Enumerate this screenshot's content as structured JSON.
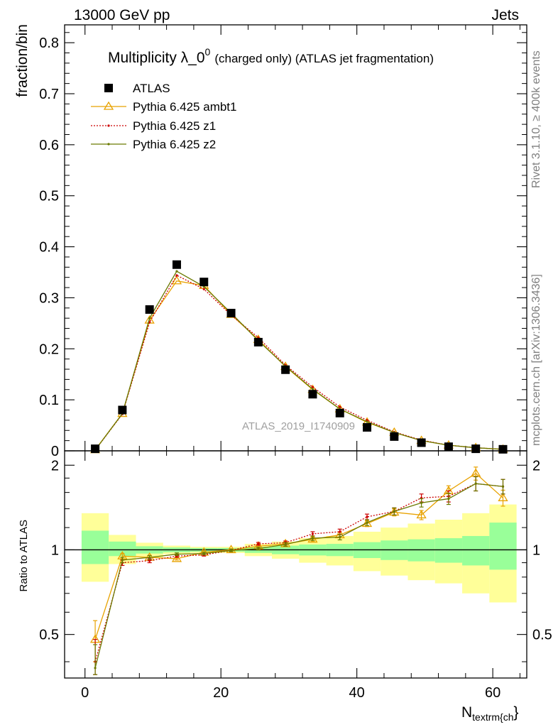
{
  "header": {
    "left": "13000 GeV pp",
    "right": "Jets"
  },
  "side": {
    "rivet": "Rivet 3.1.10, ≥ 400k events",
    "mcplots": "mcplots.cern.ch [arXiv:1306.3436]"
  },
  "colors": {
    "data": "#000000",
    "ambt1": "#e8a200",
    "z1": "#cc0000",
    "z2": "#6b7a00",
    "band_inner": "#99ff99",
    "band_outer": "#ffff99"
  },
  "chart_data": [
    {
      "type": "scatter",
      "title": "Multiplicity λ_0⁰ (charged only) (ATLAS jet fragmentation)",
      "title_main": "Multiplicity λ_0",
      "title_sup": "0",
      "title_rest": "(charged only) (ATLAS jet fragmentation)",
      "ylabel": "fraction/bin",
      "xlabel": "N",
      "xlabel_sub": "textrm{ch",
      "xlabel_close": "}",
      "watermark": "ATLAS_2019_I1740909",
      "xlim": [
        -3,
        65
      ],
      "ylim": [
        0,
        0.835
      ],
      "yticks": [
        0,
        0.1,
        0.2,
        0.3,
        0.4,
        0.5,
        0.6,
        0.7,
        0.8
      ],
      "ytick_labels": [
        "0",
        "0.1",
        "0.2",
        "0.3",
        "0.4",
        "0.5",
        "0.6",
        "0.7",
        "0.8"
      ],
      "legend_position": "top-left",
      "x": [
        1.5,
        5.5,
        9.5,
        13.5,
        17.5,
        21.5,
        25.5,
        29.5,
        33.5,
        37.5,
        41.5,
        45.5,
        49.5,
        53.5,
        57.5,
        61.5
      ],
      "series": [
        {
          "name": "ATLAS",
          "key": "data",
          "marker": "square",
          "values": [
            0.004,
            0.08,
            0.277,
            0.365,
            0.331,
            0.27,
            0.213,
            0.159,
            0.111,
            0.074,
            0.046,
            0.028,
            0.016,
            0.008,
            0.004,
            0.003
          ]
        },
        {
          "name": "Pythia 6.425 ambt1",
          "key": "ambt1",
          "marker": "triangle",
          "values": [
            0.002,
            0.073,
            0.256,
            0.333,
            0.324,
            0.267,
            0.218,
            0.165,
            0.12,
            0.082,
            0.056,
            0.036,
            0.02,
            0.011,
            0.006,
            0.003
          ]
        },
        {
          "name": "Pythia 6.425 z1",
          "key": "z1",
          "marker": "dot",
          "dashed": true,
          "values": [
            0.0015,
            0.072,
            0.252,
            0.344,
            0.317,
            0.266,
            0.222,
            0.168,
            0.125,
            0.086,
            0.06,
            0.037,
            0.021,
            0.011,
            0.006,
            0.003
          ]
        },
        {
          "name": "Pythia 6.425 z2",
          "key": "z2",
          "marker": "dot",
          "values": [
            0.0016,
            0.073,
            0.26,
            0.352,
            0.322,
            0.27,
            0.216,
            0.166,
            0.121,
            0.082,
            0.057,
            0.036,
            0.02,
            0.011,
            0.006,
            0.003
          ]
        }
      ]
    },
    {
      "type": "line",
      "ylabel": "Ratio to ATLAS",
      "xlim": [
        -3,
        65
      ],
      "ylim": [
        0.35,
        2.25
      ],
      "xticks": [
        0,
        20,
        40,
        60
      ],
      "xtick_labels": [
        "0",
        "20",
        "40",
        "60"
      ],
      "yticks": [
        0.5,
        1,
        2
      ],
      "ytick_labels": [
        "0.5",
        "1",
        "2"
      ],
      "bins": [
        [
          -0.5,
          3.5
        ],
        [
          3.5,
          7.5
        ],
        [
          7.5,
          11.5
        ],
        [
          11.5,
          15.5
        ],
        [
          15.5,
          19.5
        ],
        [
          19.5,
          23.5
        ],
        [
          23.5,
          27.5
        ],
        [
          27.5,
          31.5
        ],
        [
          31.5,
          35.5
        ],
        [
          35.5,
          39.5
        ],
        [
          39.5,
          43.5
        ],
        [
          43.5,
          47.5
        ],
        [
          47.5,
          51.5
        ],
        [
          51.5,
          55.5
        ],
        [
          55.5,
          59.5
        ],
        [
          59.5,
          63.5
        ]
      ],
      "band_inner": [
        [
          0.89,
          1.17
        ],
        [
          0.95,
          1.07
        ],
        [
          0.97,
          1.03
        ],
        [
          0.98,
          1.02
        ],
        [
          0.985,
          1.015
        ],
        [
          0.985,
          1.015
        ],
        [
          0.975,
          1.025
        ],
        [
          0.965,
          1.035
        ],
        [
          0.955,
          1.045
        ],
        [
          0.95,
          1.05
        ],
        [
          0.935,
          1.065
        ],
        [
          0.92,
          1.08
        ],
        [
          0.91,
          1.09
        ],
        [
          0.9,
          1.1
        ],
        [
          0.88,
          1.12
        ],
        [
          0.85,
          1.25
        ]
      ],
      "band_outer": [
        [
          0.77,
          1.35
        ],
        [
          0.89,
          1.13
        ],
        [
          0.94,
          1.06
        ],
        [
          0.965,
          1.035
        ],
        [
          0.975,
          1.025
        ],
        [
          0.975,
          1.025
        ],
        [
          0.95,
          1.05
        ],
        [
          0.93,
          1.07
        ],
        [
          0.9,
          1.1
        ],
        [
          0.88,
          1.12
        ],
        [
          0.84,
          1.16
        ],
        [
          0.81,
          1.2
        ],
        [
          0.78,
          1.24
        ],
        [
          0.76,
          1.28
        ],
        [
          0.7,
          1.35
        ],
        [
          0.65,
          1.45
        ]
      ],
      "series": [
        {
          "name": "Pythia 6.425 ambt1",
          "key": "ambt1",
          "marker": "triangle",
          "values": [
            0.48,
            0.95,
            0.94,
            0.93,
            0.98,
            1.0,
            1.03,
            1.05,
            1.09,
            1.13,
            1.24,
            1.36,
            1.33,
            1.62,
            1.87,
            1.53
          ],
          "errors": [
            0.08,
            0.02,
            0.015,
            0.01,
            0.01,
            0.01,
            0.012,
            0.015,
            0.02,
            0.025,
            0.03,
            0.04,
            0.05,
            0.07,
            0.1,
            0.1
          ]
        },
        {
          "name": "Pythia 6.425 z1",
          "key": "z1",
          "marker": "dot",
          "dashed": true,
          "values": [
            0.4,
            0.9,
            0.915,
            0.95,
            0.96,
            0.995,
            1.05,
            1.06,
            1.14,
            1.16,
            1.31,
            1.37,
            1.53,
            1.55,
            1.72,
            1.68
          ],
          "errors": [
            0.08,
            0.02,
            0.015,
            0.01,
            0.01,
            0.01,
            0.012,
            0.015,
            0.02,
            0.025,
            0.03,
            0.04,
            0.05,
            0.07,
            0.1,
            0.1
          ]
        },
        {
          "name": "Pythia 6.425 z2",
          "key": "z2",
          "marker": "dot",
          "values": [
            0.38,
            0.92,
            0.94,
            0.965,
            0.97,
            0.995,
            1.01,
            1.045,
            1.1,
            1.11,
            1.25,
            1.37,
            1.47,
            1.52,
            1.72,
            1.68
          ],
          "errors": [
            0.08,
            0.02,
            0.015,
            0.01,
            0.01,
            0.01,
            0.012,
            0.015,
            0.02,
            0.025,
            0.03,
            0.04,
            0.05,
            0.07,
            0.1,
            0.1
          ]
        }
      ]
    }
  ]
}
